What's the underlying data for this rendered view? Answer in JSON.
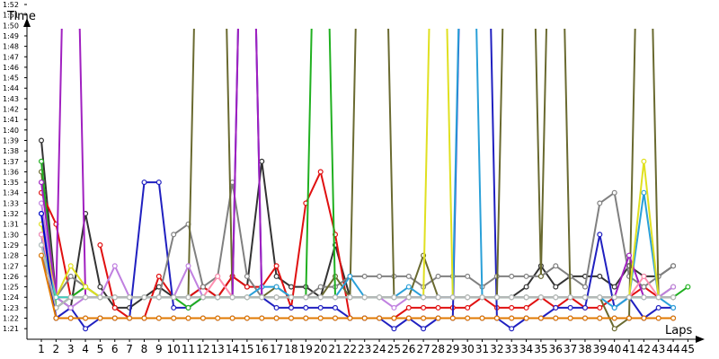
{
  "chart_data": {
    "type": "line",
    "xlabel": "Laps",
    "ylabel": "Time",
    "x": [
      1,
      2,
      3,
      4,
      5,
      6,
      7,
      8,
      9,
      10,
      11,
      12,
      13,
      14,
      15,
      16,
      17,
      18,
      19,
      20,
      21,
      22,
      23,
      24,
      25,
      26,
      27,
      28,
      29,
      30,
      31,
      32,
      33,
      34,
      35,
      36,
      37,
      38,
      39,
      40,
      41,
      42,
      43,
      44,
      45
    ],
    "x_ticks": [
      "1",
      "2",
      "3",
      "4",
      "5",
      "6",
      "7",
      "8",
      "9",
      "10",
      "11",
      "12",
      "13",
      "14",
      "15",
      "16",
      "17",
      "18",
      "19",
      "20",
      "21",
      "22",
      "23",
      "24",
      "25",
      "26",
      "27",
      "28",
      "29",
      "30",
      "31",
      "32",
      "33",
      "34",
      "35",
      "36",
      "37",
      "38",
      "39",
      "40",
      "41",
      "42",
      "43",
      "44",
      "45"
    ],
    "y_ticks": [
      "1:21",
      "1:22",
      "1:23",
      "1:24",
      "1:25",
      "1:26",
      "1:27",
      "1:28",
      "1:29",
      "1:30",
      "1:31",
      "1:32",
      "1:33",
      "1:34",
      "1:35",
      "1:36",
      "1:37",
      "1:38",
      "1:39",
      "1:40",
      "1:41",
      "1:42",
      "1:43",
      "1:44",
      "1:45",
      "1:46",
      "1:47",
      "1:48",
      "1:49",
      "1:50",
      "1:51",
      "1:52"
    ],
    "ylim_seconds": [
      80.5,
      112
    ],
    "y_unit": "seconds",
    "grid": false,
    "marker": "open circle",
    "series": [
      {
        "color": "#333333",
        "values": [
          99,
          84,
          83,
          92,
          85,
          83,
          83,
          84,
          85,
          84,
          84,
          85,
          84,
          86,
          85,
          97,
          86,
          85,
          85,
          84,
          89,
          84,
          84,
          84,
          84,
          84,
          84,
          84,
          84,
          84,
          84,
          84,
          84,
          85,
          87,
          85,
          86,
          86,
          86,
          85,
          87,
          86,
          86,
          87,
          null
        ]
      },
      {
        "color": "#e01010",
        "values": [
          94,
          91,
          84,
          null,
          89,
          83,
          82,
          82,
          86,
          84,
          84,
          85,
          84,
          86,
          85,
          85,
          87,
          83,
          93,
          96,
          90,
          82,
          82,
          82,
          82,
          83,
          83,
          83,
          83,
          83,
          84,
          83,
          83,
          83,
          84,
          83,
          84,
          83,
          83,
          84,
          84,
          85,
          84,
          84,
          null
        ]
      },
      {
        "color": "#2020c0",
        "values": [
          90,
          82,
          83,
          81,
          82,
          82,
          82,
          95,
          95,
          83,
          83,
          84,
          84,
          84,
          150,
          84,
          83,
          83,
          83,
          83,
          83,
          82,
          82,
          82,
          81,
          82,
          81,
          82,
          82,
          150,
          150,
          82,
          81,
          82,
          82,
          83,
          83,
          83,
          90,
          83,
          84,
          82,
          83,
          83,
          null
        ]
      },
      {
        "color": "#808080",
        "values": [
          88,
          84,
          86,
          85,
          84,
          84,
          84,
          84,
          84,
          90,
          91,
          85,
          86,
          95,
          86,
          84,
          84,
          84,
          84,
          85,
          85,
          86,
          86,
          86,
          86,
          86,
          85,
          86,
          86,
          86,
          85,
          86,
          86,
          86,
          86,
          87,
          86,
          85,
          93,
          94,
          86,
          85,
          86,
          87,
          null
        ]
      },
      {
        "color": "#6a6a30",
        "values": [
          96,
          84,
          84,
          85,
          84,
          84,
          84,
          84,
          84,
          84,
          84,
          150,
          150,
          84,
          84,
          84,
          85,
          84,
          84,
          84,
          86,
          84,
          150,
          150,
          84,
          84,
          88,
          84,
          84,
          84,
          84,
          84,
          150,
          150,
          86,
          150,
          84,
          84,
          84,
          81,
          82,
          150,
          84,
          85,
          null
        ]
      },
      {
        "color": "#2aa0d8",
        "values": [
          92,
          83,
          84,
          84,
          84,
          84,
          84,
          84,
          84,
          84,
          84,
          84,
          84,
          84,
          84,
          85,
          85,
          84,
          84,
          84,
          84,
          86,
          84,
          84,
          84,
          85,
          84,
          84,
          84,
          150,
          84,
          84,
          84,
          84,
          84,
          84,
          84,
          84,
          84,
          83,
          84,
          94,
          84,
          83,
          null
        ]
      },
      {
        "color": "#c080e0",
        "values": [
          93,
          84,
          83,
          84,
          84,
          87,
          84,
          84,
          84,
          84,
          87,
          84,
          84,
          84,
          84,
          84,
          84,
          84,
          84,
          84,
          84,
          84,
          84,
          84,
          83,
          84,
          84,
          84,
          84,
          84,
          84,
          84,
          84,
          84,
          84,
          84,
          84,
          84,
          84,
          84,
          84,
          84,
          84,
          85,
          null
        ]
      },
      {
        "color": "#20b020",
        "values": [
          97,
          83,
          84,
          85,
          84,
          84,
          84,
          84,
          84,
          84,
          83,
          84,
          84,
          84,
          84,
          84,
          84,
          84,
          84,
          150,
          84,
          84,
          84,
          84,
          84,
          84,
          84,
          84,
          84,
          84,
          84,
          84,
          84,
          84,
          84,
          84,
          84,
          84,
          84,
          84,
          84,
          84,
          84,
          84,
          85
        ]
      },
      {
        "color": "#a020c0",
        "values": [
          95,
          84,
          150,
          84,
          84,
          84,
          84,
          84,
          84,
          84,
          84,
          84,
          84,
          84,
          150,
          84,
          84,
          84,
          84,
          84,
          84,
          84,
          84,
          84,
          84,
          84,
          84,
          84,
          84,
          84,
          84,
          84,
          84,
          84,
          84,
          84,
          84,
          84,
          84,
          84,
          88,
          84,
          84,
          84,
          null
        ]
      },
      {
        "color": "#e0e020",
        "values": [
          91,
          84,
          87,
          85,
          84,
          84,
          84,
          84,
          84,
          84,
          84,
          84,
          84,
          84,
          84,
          84,
          84,
          84,
          84,
          84,
          84,
          84,
          84,
          84,
          84,
          84,
          84,
          150,
          84,
          84,
          84,
          84,
          84,
          84,
          84,
          84,
          84,
          84,
          84,
          84,
          84,
          97,
          84,
          84,
          null
        ]
      },
      {
        "color": "#ff8fb0",
        "values": [
          90,
          84,
          84,
          84,
          84,
          84,
          84,
          84,
          84,
          84,
          84,
          84,
          86,
          84,
          84,
          84,
          84,
          84,
          84,
          84,
          84,
          84,
          84,
          84,
          84,
          84,
          84,
          84,
          84,
          84,
          84,
          84,
          84,
          84,
          84,
          84,
          84,
          84,
          84,
          84,
          84,
          86,
          84,
          84,
          null
        ]
      },
      {
        "color": "#40d0c0",
        "values": [
          89,
          84,
          84,
          84,
          84,
          84,
          84,
          84,
          84,
          84,
          84,
          84,
          84,
          84,
          84,
          84,
          84,
          84,
          84,
          84,
          84,
          84,
          84,
          84,
          84,
          84,
          84,
          84,
          84,
          84,
          84,
          84,
          84,
          84,
          84,
          84,
          84,
          84,
          84,
          84,
          84,
          84,
          84,
          84,
          null
        ]
      },
      {
        "color": "#0000c8",
        "values": [
          92,
          82,
          82,
          82,
          82,
          82,
          82,
          82,
          82,
          82,
          82,
          82,
          82,
          82,
          82,
          82,
          82,
          82,
          82,
          82,
          82,
          82,
          82,
          82,
          82,
          82,
          82,
          82,
          82,
          82,
          82,
          82,
          82,
          82,
          82,
          82,
          82,
          82,
          82,
          82,
          82,
          82,
          82,
          82,
          null
        ]
      },
      {
        "color": "#b8b8b8",
        "values": [
          89,
          83,
          84,
          84,
          84,
          84,
          84,
          84,
          84,
          84,
          84,
          84,
          84,
          84,
          84,
          84,
          84,
          84,
          84,
          84,
          84,
          84,
          84,
          84,
          84,
          84,
          84,
          84,
          84,
          84,
          84,
          84,
          84,
          84,
          84,
          84,
          84,
          84,
          84,
          84,
          84,
          84,
          84,
          84,
          null
        ]
      },
      {
        "color": "#e07800",
        "values": [
          88,
          82,
          82,
          82,
          82,
          82,
          82,
          82,
          82,
          82,
          82,
          82,
          82,
          82,
          82,
          82,
          82,
          82,
          82,
          82,
          82,
          82,
          82,
          82,
          82,
          82,
          82,
          82,
          82,
          82,
          82,
          82,
          82,
          82,
          82,
          82,
          82,
          82,
          82,
          82,
          82,
          82,
          82,
          82,
          null
        ]
      }
    ]
  }
}
